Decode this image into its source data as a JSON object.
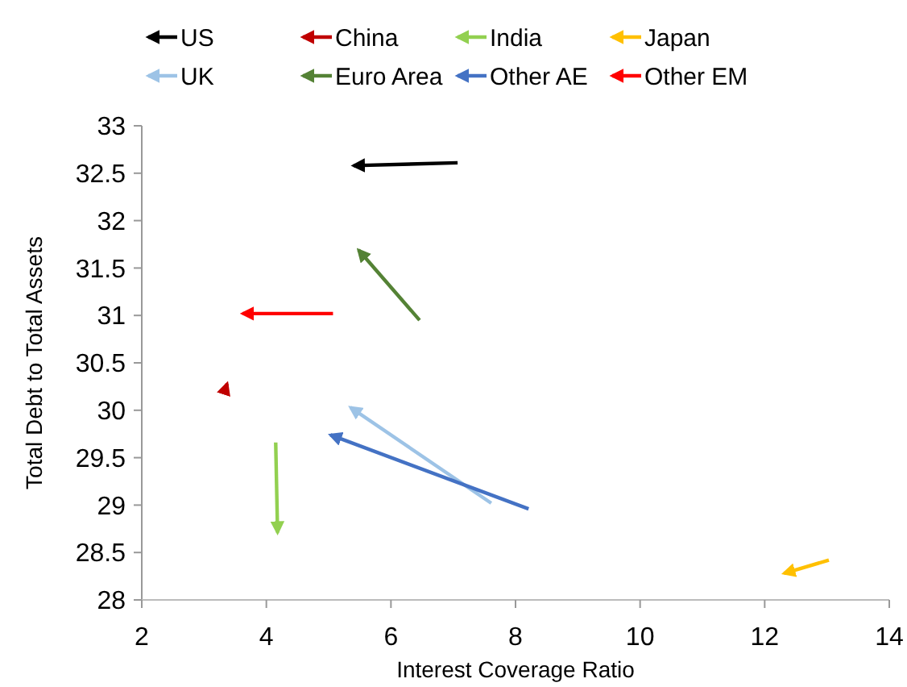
{
  "chart_data": {
    "type": "line",
    "xlabel": "Interest Coverage Ratio",
    "ylabel": "Total Debt to Total Assets",
    "xlim": [
      2,
      14
    ],
    "xticks": [
      2,
      4,
      6,
      8,
      10,
      12,
      14
    ],
    "ylim": [
      28,
      33
    ],
    "yticks": [
      28,
      28.5,
      29,
      29.5,
      30,
      30.5,
      31,
      31.5,
      32,
      32.5,
      33
    ],
    "grid": false,
    "legend": "top",
    "marker": "none",
    "line_style": "solid",
    "series": [
      {
        "name": "US",
        "color": "#000000",
        "x": [
          7.07,
          5.4
        ],
        "values": [
          32.61,
          32.58
        ]
      },
      {
        "name": "China",
        "color": "#c00000",
        "x": [
          3.32,
          3.37
        ],
        "values": [
          30.18,
          30.28
        ]
      },
      {
        "name": "India",
        "color": "#92d050",
        "x": [
          4.15,
          4.18
        ],
        "values": [
          29.66,
          28.71
        ]
      },
      {
        "name": "Japan",
        "color": "#ffc000",
        "x": [
          13.03,
          12.31
        ],
        "values": [
          28.42,
          28.28
        ]
      },
      {
        "name": "UK",
        "color": "#9dc3e6",
        "x": [
          7.61,
          5.35
        ],
        "values": [
          29.02,
          30.03
        ]
      },
      {
        "name": "Euro Area",
        "color": "#548235",
        "x": [
          6.46,
          5.48
        ],
        "values": [
          30.95,
          31.69
        ]
      },
      {
        "name": "Other AE",
        "color": "#4472c4",
        "x": [
          8.21,
          5.03
        ],
        "values": [
          28.96,
          29.74
        ]
      },
      {
        "name": "Other EM",
        "color": "#ff0000",
        "x": [
          5.07,
          3.62
        ],
        "values": [
          31.02,
          31.02
        ]
      }
    ]
  }
}
